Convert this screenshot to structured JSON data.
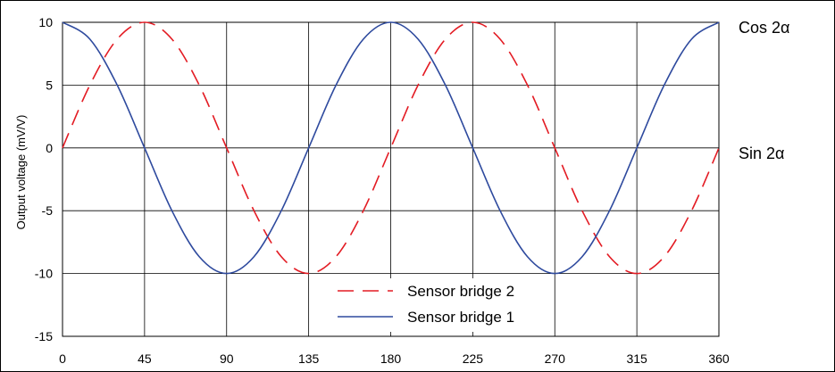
{
  "chart_data": {
    "type": "line",
    "ylabel": "Output voltage (mV/V)",
    "xlim": [
      0,
      360
    ],
    "ylim": [
      -15,
      10
    ],
    "x_ticks": [
      0,
      45,
      90,
      135,
      180,
      225,
      270,
      315,
      360
    ],
    "y_ticks": [
      10,
      5,
      0,
      -5,
      -10,
      -15
    ],
    "grid": true,
    "legend_position": "bottom-center",
    "x": [
      0,
      15,
      30,
      45,
      60,
      75,
      90,
      105,
      120,
      135,
      150,
      165,
      180,
      195,
      210,
      225,
      240,
      255,
      270,
      285,
      300,
      315,
      330,
      345,
      360
    ],
    "series": [
      {
        "name": "Sensor bridge 2",
        "color": "#e31b23",
        "dash": "dashed",
        "values": [
          0,
          5,
          8.66,
          10,
          8.66,
          5,
          0,
          -5,
          -8.66,
          -10,
          -8.66,
          -5,
          0,
          5,
          8.66,
          10,
          8.66,
          5,
          0,
          -5,
          -8.66,
          -10,
          -8.66,
          -5,
          0
        ]
      },
      {
        "name": "Sensor bridge 1",
        "color": "#2e4a9e",
        "dash": "solid",
        "values": [
          10,
          8.66,
          5,
          0,
          -5,
          -8.66,
          -10,
          -8.66,
          -5,
          0,
          5,
          8.66,
          10,
          8.66,
          5,
          0,
          -5,
          -8.66,
          -10,
          -8.66,
          -5,
          0,
          5,
          8.66,
          10
        ]
      }
    ],
    "annotations": [
      {
        "text": "Cos 2α",
        "y": 10
      },
      {
        "text": "Sin 2α",
        "y": 0
      }
    ]
  }
}
